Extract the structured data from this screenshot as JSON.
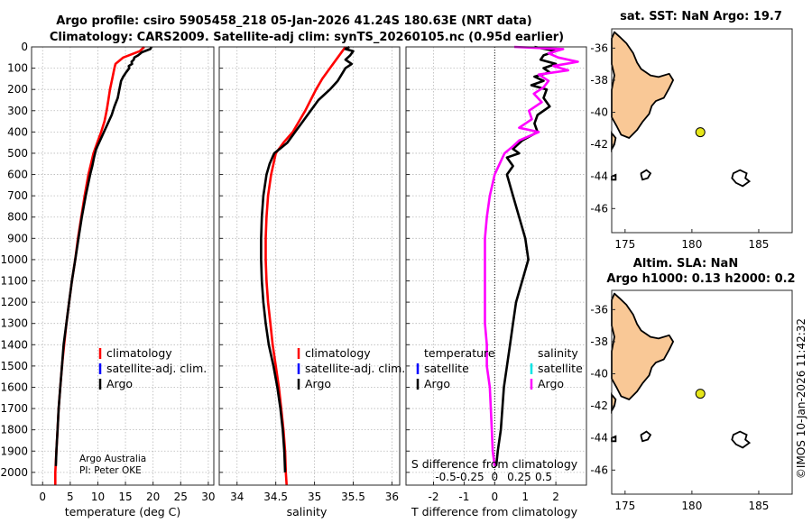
{
  "figure": {
    "title_line1": "Argo profile: csiro 5905458_218 05-Jan-2026 41.24S 180.63E (NRT data)",
    "title_line2": "Climatology: CARS2009. Satellite-adj clim: synTS_20260105.nc (0.95d earlier)",
    "credit_line1": "Argo Australia",
    "credit_line2": "PI: Peter OKE",
    "footer": "©IMOS 10-Jan-2026 11:42:32"
  },
  "legends": {
    "temp": [
      {
        "label": "climatology",
        "color": "#ff0000"
      },
      {
        "label": "satellite-adj. clim.",
        "color": "#0000ff"
      },
      {
        "label": "Argo",
        "color": "#000000"
      }
    ],
    "sal": [
      {
        "label": "climatology",
        "color": "#ff0000"
      },
      {
        "label": "satellite-adj. clim.",
        "color": "#0000ff"
      },
      {
        "label": "Argo",
        "color": "#000000"
      }
    ],
    "diff_left_header": "temperature",
    "diff_right_header": "salinity",
    "diff_left": [
      {
        "label": "satellite",
        "color": "#0000ff"
      },
      {
        "label": "Argo",
        "color": "#000000"
      }
    ],
    "diff_right": [
      {
        "label": "satellite",
        "color": "#00e5e5"
      },
      {
        "label": "Argo",
        "color": "#ff00ff"
      }
    ]
  },
  "maps": {
    "top_title": "sat. SST: NaN Argo: 19.7",
    "bottom_title_line1": "Altim. SLA: NaN",
    "bottom_title_line2": "Argo h1000: 0.13 h2000: 0.2",
    "marker_lon": 180.63,
    "marker_lat": -41.24,
    "lon_range": [
      174,
      187.5
    ],
    "lat_range": [
      -47.5,
      -34.8
    ],
    "lon_ticks": [
      175,
      180,
      185
    ],
    "lat_ticks": [
      -36,
      -38,
      -40,
      -42,
      -44,
      -46
    ],
    "land_color": "#f9c896",
    "marker_color": "#e6e61a"
  },
  "chart_data": [
    {
      "type": "line",
      "id": "temperature",
      "xlabel": "temperature (deg C)",
      "ylabel": "",
      "xlim": [
        -2,
        31
      ],
      "ylim": [
        2060,
        0
      ],
      "xticks": [
        0,
        5,
        10,
        15,
        20,
        25,
        30
      ],
      "yticks": [
        0,
        100,
        200,
        300,
        400,
        500,
        600,
        700,
        800,
        900,
        1000,
        1100,
        1200,
        1300,
        1400,
        1500,
        1600,
        1700,
        1800,
        1900,
        2000
      ],
      "series": [
        {
          "name": "climatology",
          "color": "#ff0000",
          "depth": [
            0,
            20,
            50,
            80,
            100,
            150,
            200,
            250,
            300,
            350,
            400,
            450,
            500,
            600,
            700,
            800,
            900,
            1000,
            1100,
            1200,
            1300,
            1400,
            1500,
            1600,
            1700,
            1800,
            1900,
            2000,
            2060
          ],
          "values": [
            18.4,
            17.6,
            14.6,
            13.2,
            13.0,
            12.6,
            12.2,
            11.9,
            11.6,
            11.2,
            10.6,
            9.9,
            9.2,
            8.3,
            7.6,
            7.0,
            6.4,
            5.9,
            5.3,
            4.8,
            4.3,
            3.9,
            3.5,
            3.2,
            2.9,
            2.7,
            2.5,
            2.3,
            2.3
          ]
        },
        {
          "name": "Argo",
          "color": "#000000",
          "depth": [
            0,
            10,
            25,
            40,
            50,
            60,
            70,
            80,
            90,
            100,
            120,
            140,
            160,
            200,
            240,
            280,
            320,
            360,
            400,
            440,
            480,
            520,
            560,
            600,
            700,
            800,
            900,
            1000,
            1100,
            1200,
            1300,
            1400,
            1500,
            1600,
            1700,
            1800,
            1900,
            1970
          ],
          "values": [
            19.7,
            19.5,
            18.0,
            17.3,
            16.6,
            16.5,
            16.1,
            16.2,
            15.6,
            15.7,
            15.1,
            14.6,
            14.2,
            13.9,
            13.6,
            13.0,
            12.5,
            11.8,
            11.1,
            10.4,
            9.7,
            9.3,
            9.0,
            8.6,
            7.8,
            7.1,
            6.5,
            5.9,
            5.3,
            4.8,
            4.3,
            3.8,
            3.5,
            3.2,
            2.9,
            2.7,
            2.5,
            2.4
          ]
        }
      ]
    },
    {
      "type": "line",
      "id": "salinity",
      "xlabel": "salinity",
      "ylabel": "",
      "xlim": [
        33.77,
        36.1
      ],
      "ylim": [
        2060,
        0
      ],
      "xticks": [
        34,
        34.5,
        35,
        35.5,
        36
      ],
      "series": [
        {
          "name": "climatology",
          "color": "#ff0000",
          "depth": [
            0,
            50,
            100,
            150,
            200,
            250,
            300,
            350,
            400,
            450,
            500,
            600,
            700,
            800,
            900,
            1000,
            1100,
            1200,
            1300,
            1400,
            1500,
            1600,
            1700,
            1800,
            1900,
            2000,
            2060
          ],
          "values": [
            35.4,
            35.3,
            35.2,
            35.1,
            35.02,
            34.95,
            34.88,
            34.8,
            34.72,
            34.6,
            34.5,
            34.44,
            34.4,
            34.38,
            34.37,
            34.37,
            34.38,
            34.4,
            34.43,
            34.46,
            34.5,
            34.54,
            34.57,
            34.6,
            34.62,
            34.63,
            34.64
          ]
        },
        {
          "name": "Argo",
          "color": "#000000",
          "depth": [
            0,
            10,
            20,
            40,
            60,
            80,
            100,
            130,
            160,
            200,
            250,
            300,
            350,
            400,
            450,
            480,
            500,
            550,
            600,
            700,
            800,
            900,
            1000,
            1100,
            1200,
            1300,
            1400,
            1500,
            1600,
            1700,
            1800,
            1900,
            2000
          ],
          "values": [
            35.45,
            35.4,
            35.5,
            35.46,
            35.4,
            35.48,
            35.4,
            35.35,
            35.3,
            35.2,
            35.05,
            34.95,
            34.85,
            34.75,
            34.65,
            34.55,
            34.48,
            34.42,
            34.38,
            34.34,
            34.32,
            34.31,
            34.31,
            34.32,
            34.34,
            34.37,
            34.41,
            34.47,
            34.52,
            34.56,
            34.59,
            34.61,
            34.62
          ]
        }
      ]
    },
    {
      "type": "line",
      "id": "difference",
      "xlabel": "T difference from climatology",
      "xlabel_top": "S difference from climatology",
      "ylabel": "",
      "xlim": [
        -2.9,
        3.0
      ],
      "ylim": [
        2060,
        0
      ],
      "xticks": [
        -2,
        -1,
        0,
        1,
        2
      ],
      "xticks_top": [
        -0.5,
        -0.25,
        0,
        0.25,
        0.5
      ],
      "top_tick_labels": [
        "-0.5",
        "-0.25",
        "0",
        "0.25",
        "0.5"
      ],
      "series": [
        {
          "name": "T diff Argo",
          "color": "#000000",
          "depth": [
            0,
            20,
            40,
            60,
            80,
            100,
            120,
            140,
            160,
            180,
            200,
            240,
            280,
            320,
            360,
            400,
            440,
            480,
            500,
            520,
            560,
            600,
            700,
            800,
            900,
            1000,
            1100,
            1200,
            1300,
            1400,
            1500,
            1600,
            1700,
            1800,
            1900,
            1970
          ],
          "values": [
            1.3,
            2.0,
            1.6,
            1.5,
            2.0,
            1.6,
            1.8,
            1.3,
            1.6,
            1.2,
            1.7,
            1.6,
            1.8,
            1.4,
            1.3,
            1.4,
            0.9,
            0.6,
            0.8,
            0.4,
            0.6,
            0.4,
            0.6,
            0.8,
            1.0,
            1.1,
            0.9,
            0.7,
            0.6,
            0.5,
            0.4,
            0.3,
            0.25,
            0.2,
            0.1,
            0.05
          ]
        },
        {
          "name": "S diff Argo",
          "color": "#ff00ff",
          "depth": [
            0,
            10,
            30,
            50,
            70,
            90,
            110,
            130,
            160,
            190,
            220,
            260,
            300,
            340,
            380,
            400,
            420,
            440,
            470,
            500,
            550,
            600,
            700,
            800,
            900,
            1000,
            1100,
            1200,
            1300,
            1400,
            1500,
            1600,
            1700,
            1800,
            1900,
            1970
          ],
          "values": [
            0.2,
            0.7,
            0.55,
            0.65,
            0.85,
            0.6,
            0.75,
            0.45,
            0.55,
            0.5,
            0.4,
            0.48,
            0.35,
            0.38,
            0.25,
            0.45,
            0.35,
            0.25,
            0.18,
            0.1,
            0.05,
            0.0,
            -0.05,
            -0.08,
            -0.1,
            -0.1,
            -0.1,
            -0.1,
            -0.1,
            -0.08,
            -0.08,
            -0.05,
            -0.04,
            -0.03,
            -0.02,
            0.0
          ]
        }
      ]
    }
  ]
}
